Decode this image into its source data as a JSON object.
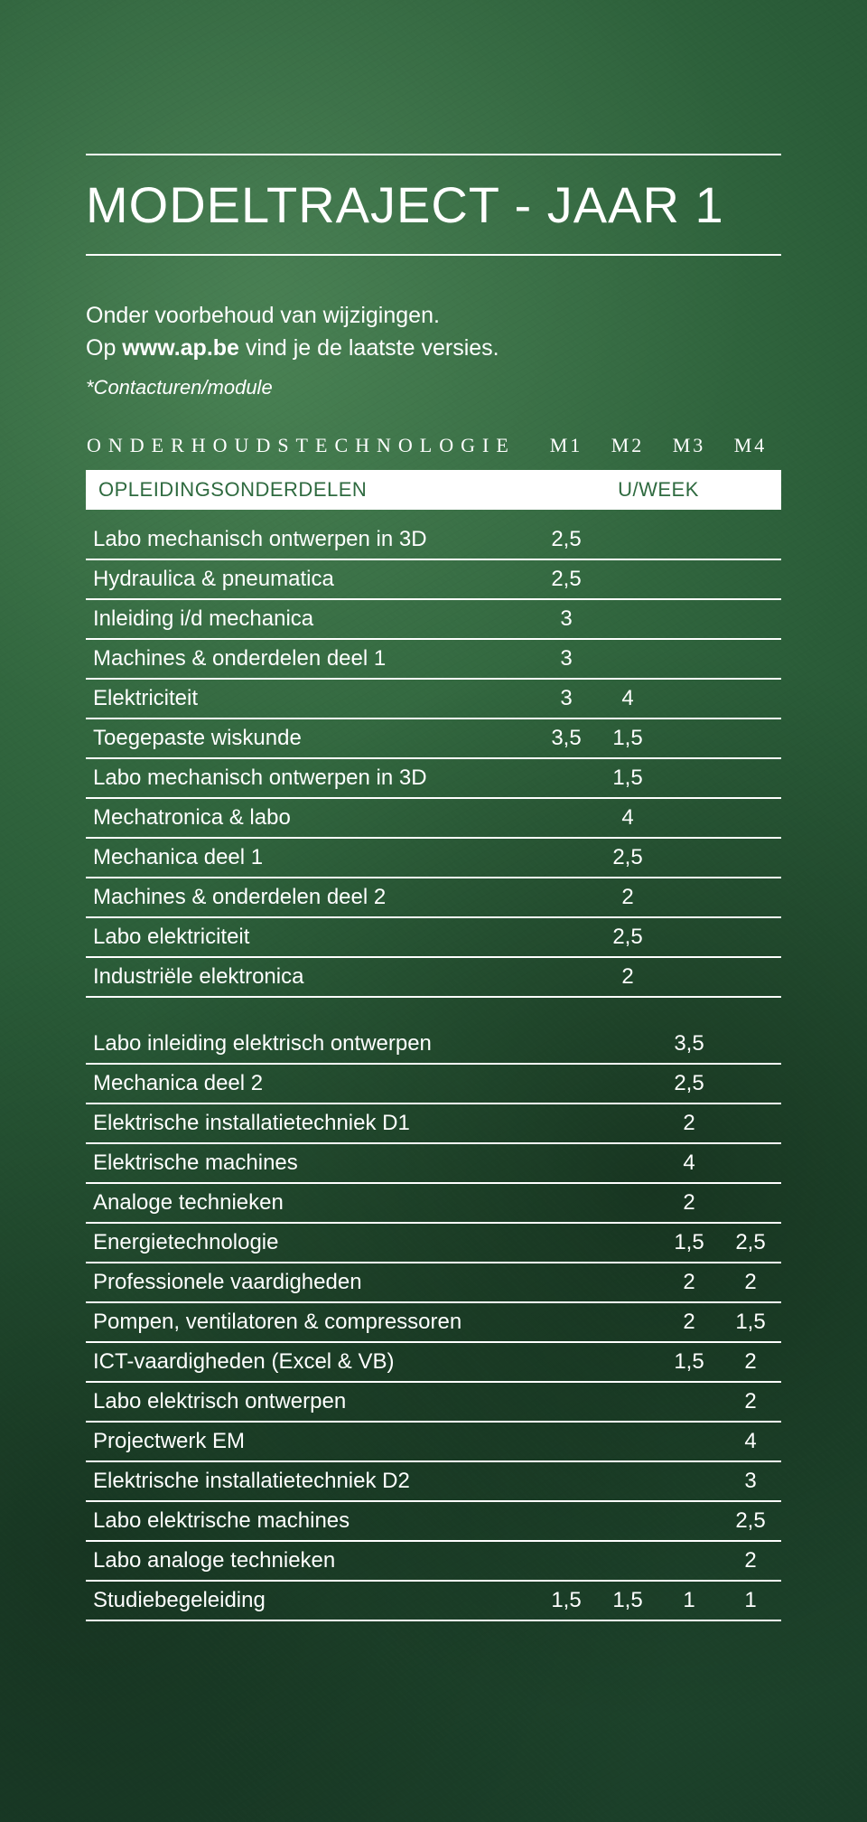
{
  "colors": {
    "background_primary": "#2a5c38",
    "text": "#ffffff",
    "header_bg": "#ffffff",
    "header_text": "#2e6a3f",
    "rule": "#ffffff"
  },
  "title": "MODELTRAJECT - JAAR 1",
  "intro_line1": "Onder voorbehoud van wijzigingen.",
  "intro_line2_pre": "Op ",
  "intro_line2_bold": "www.ap.be",
  "intro_line2_post": " vind je de laatste versies.",
  "note": "*Contacturen/module",
  "section_label": "ONDERHOUDSTECHNOLOGIE",
  "module_headers": {
    "m1": "M1",
    "m2": "M2",
    "m3": "M3",
    "m4": "M4"
  },
  "header_row": {
    "left": "OPLEIDINGSONDERDELEN",
    "right": "U/WEEK"
  },
  "block1": [
    {
      "label": "Labo mechanisch ontwerpen in 3D",
      "m1": "2,5",
      "m2": "",
      "m3": "",
      "m4": ""
    },
    {
      "label": "Hydraulica & pneumatica",
      "m1": "2,5",
      "m2": "",
      "m3": "",
      "m4": ""
    },
    {
      "label": "Inleiding i/d mechanica",
      "m1": "3",
      "m2": "",
      "m3": "",
      "m4": ""
    },
    {
      "label": "Machines & onderdelen deel 1",
      "m1": "3",
      "m2": "",
      "m3": "",
      "m4": ""
    },
    {
      "label": "Elektriciteit",
      "m1": "3",
      "m2": "4",
      "m3": "",
      "m4": ""
    },
    {
      "label": "Toegepaste wiskunde",
      "m1": "3,5",
      "m2": "1,5",
      "m3": "",
      "m4": ""
    },
    {
      "label": "Labo mechanisch ontwerpen in 3D",
      "m1": "",
      "m2": "1,5",
      "m3": "",
      "m4": ""
    },
    {
      "label": "Mechatronica & labo",
      "m1": "",
      "m2": "4",
      "m3": "",
      "m4": ""
    },
    {
      "label": "Mechanica deel 1",
      "m1": "",
      "m2": "2,5",
      "m3": "",
      "m4": ""
    },
    {
      "label": "Machines & onderdelen deel 2",
      "m1": "",
      "m2": "2",
      "m3": "",
      "m4": ""
    },
    {
      "label": "Labo elektriciteit",
      "m1": "",
      "m2": "2,5",
      "m3": "",
      "m4": ""
    },
    {
      "label": "Industriële elektronica",
      "m1": "",
      "m2": "2",
      "m3": "",
      "m4": ""
    }
  ],
  "block2": [
    {
      "label": "Labo inleiding elektrisch ontwerpen",
      "m1": "",
      "m2": "",
      "m3": "3,5",
      "m4": ""
    },
    {
      "label": "Mechanica deel 2",
      "m1": "",
      "m2": "",
      "m3": "2,5",
      "m4": ""
    },
    {
      "label": "Elektrische installatietechniek D1",
      "m1": "",
      "m2": "",
      "m3": "2",
      "m4": ""
    },
    {
      "label": "Elektrische machines",
      "m1": "",
      "m2": "",
      "m3": "4",
      "m4": ""
    },
    {
      "label": "Analoge technieken",
      "m1": "",
      "m2": "",
      "m3": "2",
      "m4": ""
    },
    {
      "label": "Energietechnologie",
      "m1": "",
      "m2": "",
      "m3": "1,5",
      "m4": "2,5"
    },
    {
      "label": "Professionele vaardigheden",
      "m1": "",
      "m2": "",
      "m3": "2",
      "m4": "2"
    },
    {
      "label": "Pompen, ventilatoren & compressoren",
      "m1": "",
      "m2": "",
      "m3": "2",
      "m4": "1,5"
    },
    {
      "label": "ICT-vaardigheden (Excel & VB)",
      "m1": "",
      "m2": "",
      "m3": "1,5",
      "m4": "2"
    },
    {
      "label": "Labo elektrisch ontwerpen",
      "m1": "",
      "m2": "",
      "m3": "",
      "m4": "2"
    },
    {
      "label": "Projectwerk EM",
      "m1": "",
      "m2": "",
      "m3": "",
      "m4": "4"
    },
    {
      "label": "Elektrische installatietechniek D2",
      "m1": "",
      "m2": "",
      "m3": "",
      "m4": "3"
    },
    {
      "label": "Labo elektrische machines",
      "m1": "",
      "m2": "",
      "m3": "",
      "m4": "2,5"
    },
    {
      "label": "Labo analoge technieken",
      "m1": "",
      "m2": "",
      "m3": "",
      "m4": "2"
    },
    {
      "label": "Studiebegeleiding",
      "m1": "1,5",
      "m2": "1,5",
      "m3": "1",
      "m4": "1"
    }
  ]
}
